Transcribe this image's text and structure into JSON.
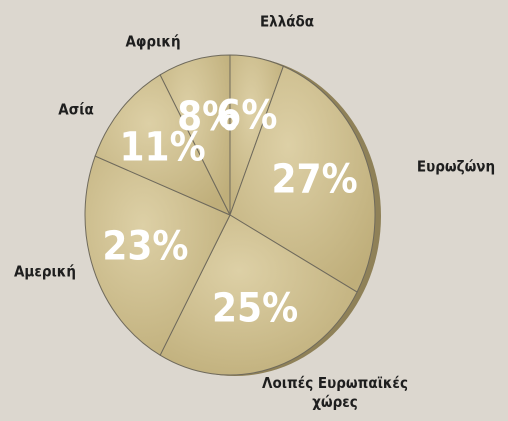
{
  "chart_data": {
    "type": "pie",
    "categories": [
      "Ελλάδα",
      "Ευρωζώνη",
      "Λοιπές Ευρωπαϊκές χώρες",
      "Αμερική",
      "Ασία",
      "Αφρική"
    ],
    "values": [
      6,
      27,
      25,
      23,
      11,
      8
    ],
    "value_labels": [
      "6%",
      "27%",
      "25%",
      "23%",
      "11%",
      "8%"
    ],
    "color": "#d3c28f"
  }
}
